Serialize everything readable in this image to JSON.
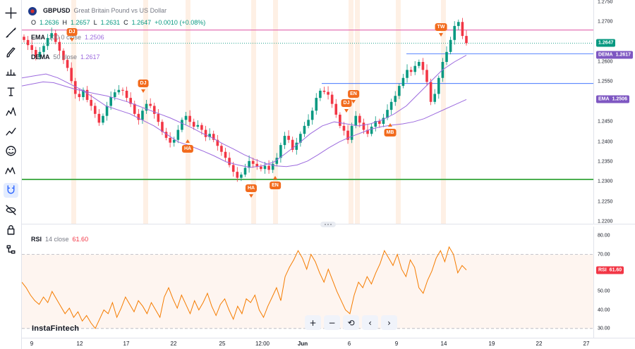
{
  "toolbar": {
    "items": [
      {
        "name": "crosshair",
        "icon": "crosshair-icon"
      },
      {
        "name": "trend-line",
        "icon": "trend-line-icon"
      },
      {
        "name": "brush",
        "icon": "brush-icon"
      },
      {
        "name": "measure",
        "icon": "measure-icon"
      },
      {
        "name": "text",
        "icon": "text-icon"
      },
      {
        "name": "pattern",
        "icon": "pattern-icon"
      },
      {
        "name": "prediction",
        "icon": "prediction-icon"
      },
      {
        "name": "emoji",
        "icon": "emoji-icon"
      },
      {
        "name": "ruler",
        "icon": "ruler-icon"
      },
      {
        "name": "magnet",
        "icon": "magnet-icon",
        "active": true
      },
      {
        "name": "eye-off",
        "icon": "hide-drawings-icon"
      },
      {
        "name": "lock-all",
        "icon": "lock-all-icon"
      },
      {
        "name": "object-tree",
        "icon": "object-tree-icon"
      }
    ]
  },
  "legend": {
    "symbol": "GBPUSD",
    "description": "Great Britain Pound vs US Dollar",
    "ohlc": {
      "o_label": "O",
      "o": "1.2636",
      "h_label": "H",
      "h": "1.2657",
      "l_label": "L",
      "l": "1.2631",
      "c_label": "C",
      "c": "1.2647",
      "change": "+0.0010 (+0.08%)"
    },
    "ema": {
      "name": "EMA",
      "params": "100 0 close",
      "value": "1.2506"
    },
    "dema": {
      "name": "DEMA",
      "params": "50 close",
      "value": "1.2617"
    },
    "rsi": {
      "name": "RSI",
      "params": "14 close",
      "value": "61.60"
    }
  },
  "price_axis": {
    "labels": [
      "1.2750",
      "1.2700",
      "1.2650",
      "1.2600",
      "1.2550",
      "1.2500",
      "1.2450",
      "1.2400",
      "1.2350",
      "1.2300",
      "1.2250",
      "1.2200"
    ],
    "badges": [
      {
        "value": "1.2647",
        "label": "",
        "color": "#089981",
        "price": 1.2647
      },
      {
        "value": "1.2617",
        "label": "DEMA",
        "color": "#7e57c2",
        "price": 1.2617
      },
      {
        "value": "1.2506",
        "label": "EMA",
        "color": "#7e57c2",
        "price": 1.2506
      }
    ]
  },
  "rsi_axis": {
    "labels": [
      "80.00",
      "70.00",
      "60.00",
      "50.00",
      "40.00",
      "30.00"
    ],
    "badge": {
      "label": "RSI",
      "value": "61.60",
      "color": "#f23645"
    }
  },
  "time_axis": {
    "labels": [
      {
        "text": "9",
        "bold": false
      },
      {
        "text": "12",
        "bold": false
      },
      {
        "text": "17",
        "bold": false
      },
      {
        "text": "22",
        "bold": false
      },
      {
        "text": "25",
        "bold": false
      },
      {
        "text": "12:00",
        "bold": false
      },
      {
        "text": "Jun",
        "bold": true
      },
      {
        "text": "6",
        "bold": false
      },
      {
        "text": "9",
        "bold": false
      },
      {
        "text": "14",
        "bold": false
      },
      {
        "text": "19",
        "bold": false
      },
      {
        "text": "22",
        "bold": false
      },
      {
        "text": "27",
        "bold": false
      }
    ]
  },
  "events": [
    {
      "label": "DJ",
      "dir": "down"
    },
    {
      "label": "DJ",
      "dir": "down"
    },
    {
      "label": "HA",
      "dir": "up"
    },
    {
      "label": "HA",
      "dir": "down"
    },
    {
      "label": "EN",
      "dir": "up"
    },
    {
      "label": "EN",
      "dir": "down"
    },
    {
      "label": "DJ",
      "dir": "down"
    },
    {
      "label": "MB",
      "dir": "up"
    },
    {
      "label": "TW",
      "dir": "down"
    }
  ],
  "brand": "InstaFintech",
  "controls": [
    {
      "name": "zoom-in",
      "glyph": "+"
    },
    {
      "name": "zoom-out",
      "glyph": "−"
    },
    {
      "name": "reset",
      "glyph": "⟲"
    },
    {
      "name": "scroll-left",
      "glyph": "‹"
    },
    {
      "name": "scroll-right",
      "glyph": "›"
    }
  ],
  "colors": {
    "up": "#089981",
    "down": "#f23645",
    "ema": "#9c6ade",
    "rsi": "#f57c00",
    "support": "#4caf50",
    "resistance": "#e573b5",
    "level": "#2962ff",
    "event": "#f26b1d"
  },
  "chart_data": {
    "type": "candlestick",
    "symbol": "GBPUSD",
    "ylim": [
      1.2195,
      1.2755
    ],
    "levels": {
      "resistance": 1.268,
      "support": 1.2306,
      "blue_lines": [
        1.262,
        1.2546
      ]
    },
    "close_series": [
      1.2655,
      1.2642,
      1.263,
      1.2612,
      1.2625,
      1.264,
      1.266,
      1.2672,
      1.265,
      1.2628,
      1.2605,
      1.2585,
      1.2552,
      1.252,
      1.2512,
      1.253,
      1.2505,
      1.249,
      1.247,
      1.2448,
      1.2465,
      1.249,
      1.2512,
      1.2524,
      1.253,
      1.2528,
      1.251,
      1.2495,
      1.247,
      1.2455,
      1.2478,
      1.2495,
      1.249,
      1.247,
      1.245,
      1.2425,
      1.241,
      1.2398,
      1.2405,
      1.243,
      1.2455,
      1.2465,
      1.245,
      1.2438,
      1.2442,
      1.243,
      1.2412,
      1.242,
      1.2405,
      1.239,
      1.2375,
      1.236,
      1.2342,
      1.2325,
      1.231,
      1.2318,
      1.2335,
      1.2352,
      1.2345,
      1.2338,
      1.2332,
      1.234,
      1.233,
      1.2345,
      1.236,
      1.2392,
      1.2415,
      1.2405,
      1.238,
      1.2398,
      1.242,
      1.244,
      1.2455,
      1.2478,
      1.251,
      1.2528,
      1.2525,
      1.2518,
      1.2495,
      1.2468,
      1.244,
      1.2428,
      1.2405,
      1.244,
      1.2465,
      1.2448,
      1.243,
      1.242,
      1.2438,
      1.2452,
      1.2445,
      1.246,
      1.248,
      1.25,
      1.2515,
      1.254,
      1.256,
      1.258,
      1.2575,
      1.259,
      1.26,
      1.258,
      1.255,
      1.25,
      1.252,
      1.256,
      1.26,
      1.2625,
      1.2655,
      1.269,
      1.27,
      1.2665,
      1.2647
    ],
    "ema": [
      1.254,
      1.2545,
      1.255,
      1.2548,
      1.254,
      1.2532,
      1.2526,
      1.252,
      1.2515,
      1.2508,
      1.25,
      1.249,
      1.248,
      1.247,
      1.246,
      1.2448,
      1.2436,
      1.2422,
      1.241,
      1.2395,
      1.2382,
      1.2368,
      1.2356,
      1.2346,
      1.234,
      1.2338,
      1.2342,
      1.2352,
      1.2368,
      1.2385,
      1.24,
      1.2412,
      1.2422,
      1.2432,
      1.2438,
      1.2442,
      1.2445,
      1.245,
      1.2458,
      1.247,
      1.2482,
      1.2494,
      1.2506
    ],
    "dema": [
      1.256,
      1.2565,
      1.257,
      1.256,
      1.2545,
      1.253,
      1.251,
      1.249,
      1.248,
      1.247,
      1.2455,
      1.244,
      1.242,
      1.24,
      1.239,
      1.2378,
      1.2365,
      1.235,
      1.2342,
      1.2336,
      1.234,
      1.235,
      1.2372,
      1.2395,
      1.242,
      1.244,
      1.245,
      1.2445,
      1.244,
      1.2445,
      1.2455,
      1.247,
      1.249,
      1.252,
      1.255,
      1.258,
      1.26,
      1.2617
    ],
    "rsi": [
      55,
      52,
      48,
      45,
      43,
      47,
      44,
      50,
      46,
      42,
      38,
      41,
      36,
      39,
      34,
      37,
      33,
      30,
      35,
      40,
      38,
      44,
      36,
      41,
      47,
      43,
      39,
      45,
      42,
      38,
      44,
      40,
      36,
      47,
      52,
      46,
      41,
      48,
      43,
      38,
      45,
      40,
      44,
      49,
      42,
      37,
      43,
      46,
      40,
      35,
      42,
      38,
      46,
      44,
      48,
      40,
      36,
      42,
      47,
      52,
      45,
      58,
      63,
      67,
      72,
      68,
      62,
      70,
      66,
      60,
      55,
      62,
      56,
      50,
      45,
      40,
      38,
      48,
      55,
      52,
      58,
      54,
      60,
      65,
      72,
      68,
      64,
      70,
      62,
      58,
      67,
      63,
      52,
      49,
      56,
      61,
      68,
      72,
      66,
      74,
      70,
      60,
      64,
      61.6
    ],
    "rsi_ylim": [
      25,
      85
    ],
    "rsi_bands": [
      30,
      70
    ]
  }
}
